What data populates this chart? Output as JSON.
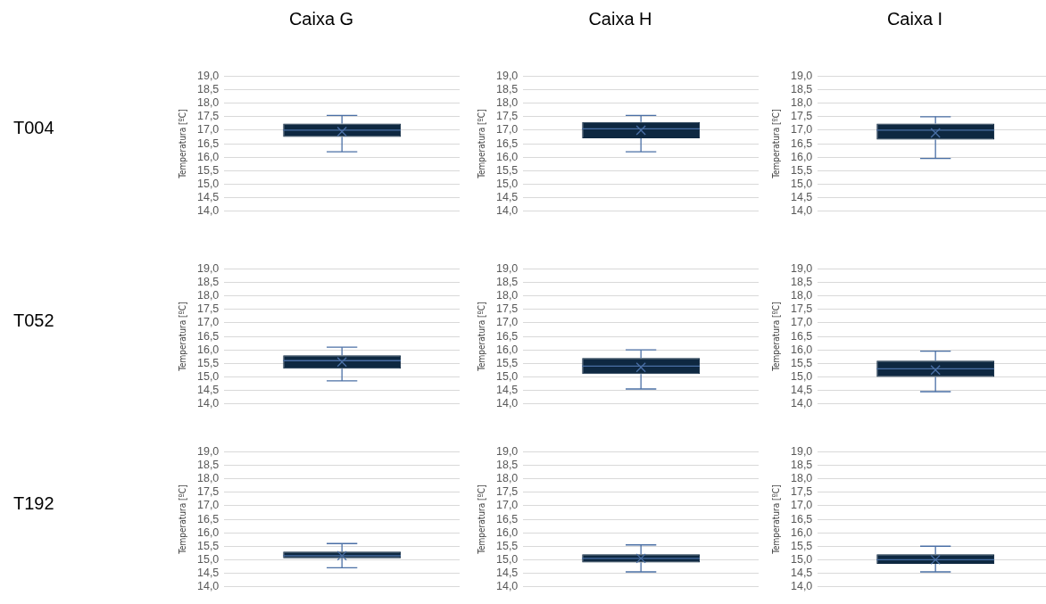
{
  "chart_data": [
    {
      "type": "box",
      "title": "Caixa G",
      "annotations": [
        "T004"
      ],
      "ylabel": "Temperatura [ºC]",
      "categories": [
        null
      ],
      "color": "#0e2841",
      "grid": "y",
      "legend": false,
      "ylim": [
        14,
        19
      ],
      "yticks": [
        {
          "value": 14,
          "label": "14,0"
        },
        {
          "value": 14.5,
          "label": "14,5"
        },
        {
          "value": 15,
          "label": "15,0"
        },
        {
          "value": 15.5,
          "label": "15,5"
        },
        {
          "value": 16,
          "label": "16,0"
        },
        {
          "value": 16.5,
          "label": "16,5"
        },
        {
          "value": 17,
          "label": "17,0"
        },
        {
          "value": 17.5,
          "label": "17,5"
        },
        {
          "value": 18,
          "label": "18,0"
        },
        {
          "value": 18.5,
          "label": "18,5"
        },
        {
          "value": 19,
          "label": "19,0"
        }
      ],
      "boxes": [
        {
          "low": 16.2,
          "q1": 16.75,
          "median": 17.0,
          "q3": 17.25,
          "high": 17.55,
          "mean": 16.95
        }
      ]
    },
    {
      "type": "box",
      "title": "Caixa H",
      "ylabel": "Temperatura [ºC]",
      "categories": [
        null
      ],
      "color": "#0e2841",
      "grid": "y",
      "legend": false,
      "ylim": [
        14,
        19
      ],
      "yticks": [
        {
          "value": 14,
          "label": "14,0"
        },
        {
          "value": 14.5,
          "label": "14,5"
        },
        {
          "value": 15,
          "label": "15,0"
        },
        {
          "value": 15.5,
          "label": "15,5"
        },
        {
          "value": 16,
          "label": "16,0"
        },
        {
          "value": 16.5,
          "label": "16,5"
        },
        {
          "value": 17,
          "label": "17,0"
        },
        {
          "value": 17.5,
          "label": "17,5"
        },
        {
          "value": 18,
          "label": "18,0"
        },
        {
          "value": 18.5,
          "label": "18,5"
        },
        {
          "value": 19,
          "label": "19,0"
        }
      ],
      "boxes": [
        {
          "low": 16.2,
          "q1": 16.7,
          "median": 17.05,
          "q3": 17.3,
          "high": 17.55,
          "mean": 17.0
        }
      ]
    },
    {
      "type": "box",
      "title": "Caixa I",
      "ylabel": "Temperatura [ºC]",
      "categories": [
        null
      ],
      "color": "#0e2841",
      "grid": "y",
      "legend": false,
      "ylim": [
        14,
        19
      ],
      "yticks": [
        {
          "value": 14,
          "label": "14,0"
        },
        {
          "value": 14.5,
          "label": "14,5"
        },
        {
          "value": 15,
          "label": "15,0"
        },
        {
          "value": 15.5,
          "label": "15,5"
        },
        {
          "value": 16,
          "label": "16,0"
        },
        {
          "value": 16.5,
          "label": "16,5"
        },
        {
          "value": 17,
          "label": "17,0"
        },
        {
          "value": 17.5,
          "label": "17,5"
        },
        {
          "value": 18,
          "label": "18,0"
        },
        {
          "value": 18.5,
          "label": "18,5"
        },
        {
          "value": 19,
          "label": "19,0"
        }
      ],
      "boxes": [
        {
          "low": 15.95,
          "q1": 16.65,
          "median": 17.0,
          "q3": 17.25,
          "high": 17.5,
          "mean": 16.9
        }
      ]
    },
    {
      "type": "box",
      "annotations": [
        "T052"
      ],
      "ylabel": "Temperatura [ºC]",
      "categories": [
        null
      ],
      "color": "#0e2841",
      "grid": "y",
      "legend": false,
      "ylim": [
        14,
        19
      ],
      "yticks": [
        {
          "value": 14,
          "label": "14,0"
        },
        {
          "value": 14.5,
          "label": "14,5"
        },
        {
          "value": 15,
          "label": "15,0"
        },
        {
          "value": 15.5,
          "label": "15,5"
        },
        {
          "value": 16,
          "label": "16,0"
        },
        {
          "value": 16.5,
          "label": "16,5"
        },
        {
          "value": 17,
          "label": "17,0"
        },
        {
          "value": 17.5,
          "label": "17,5"
        },
        {
          "value": 18,
          "label": "18,0"
        },
        {
          "value": 18.5,
          "label": "18,5"
        },
        {
          "value": 19,
          "label": "19,0"
        }
      ],
      "boxes": [
        {
          "low": 14.85,
          "q1": 15.3,
          "median": 15.6,
          "q3": 15.8,
          "high": 16.1,
          "mean": 15.55
        }
      ]
    },
    {
      "type": "box",
      "ylabel": "Temperatura [ºC]",
      "categories": [
        null
      ],
      "color": "#0e2841",
      "grid": "y",
      "legend": false,
      "ylim": [
        14,
        19
      ],
      "yticks": [
        {
          "value": 14,
          "label": "14,0"
        },
        {
          "value": 14.5,
          "label": "14,5"
        },
        {
          "value": 15,
          "label": "15,0"
        },
        {
          "value": 15.5,
          "label": "15,5"
        },
        {
          "value": 16,
          "label": "16,0"
        },
        {
          "value": 16.5,
          "label": "16,5"
        },
        {
          "value": 17,
          "label": "17,0"
        },
        {
          "value": 17.5,
          "label": "17,5"
        },
        {
          "value": 18,
          "label": "18,0"
        },
        {
          "value": 18.5,
          "label": "18,5"
        },
        {
          "value": 19,
          "label": "19,0"
        }
      ],
      "boxes": [
        {
          "low": 14.55,
          "q1": 15.1,
          "median": 15.4,
          "q3": 15.7,
          "high": 16.0,
          "mean": 15.35
        }
      ]
    },
    {
      "type": "box",
      "ylabel": "Temperatura [ºC]",
      "categories": [
        null
      ],
      "color": "#0e2841",
      "grid": "y",
      "legend": false,
      "ylim": [
        14,
        19
      ],
      "yticks": [
        {
          "value": 14,
          "label": "14,0"
        },
        {
          "value": 14.5,
          "label": "14,5"
        },
        {
          "value": 15,
          "label": "15,0"
        },
        {
          "value": 15.5,
          "label": "15,5"
        },
        {
          "value": 16,
          "label": "16,0"
        },
        {
          "value": 16.5,
          "label": "16,5"
        },
        {
          "value": 17,
          "label": "17,0"
        },
        {
          "value": 17.5,
          "label": "17,5"
        },
        {
          "value": 18,
          "label": "18,0"
        },
        {
          "value": 18.5,
          "label": "18,5"
        },
        {
          "value": 19,
          "label": "19,0"
        }
      ],
      "boxes": [
        {
          "low": 14.45,
          "q1": 15.0,
          "median": 15.3,
          "q3": 15.6,
          "high": 15.95,
          "mean": 15.25
        }
      ]
    },
    {
      "type": "box",
      "annotations": [
        "T192"
      ],
      "ylabel": "Temperatura [ºC]",
      "categories": [
        null
      ],
      "color": "#0e2841",
      "grid": "y",
      "legend": false,
      "ylim": [
        14,
        19
      ],
      "yticks": [
        {
          "value": 14,
          "label": "14,0"
        },
        {
          "value": 14.5,
          "label": "14,5"
        },
        {
          "value": 15,
          "label": "15,0"
        },
        {
          "value": 15.5,
          "label": "15,5"
        },
        {
          "value": 16,
          "label": "16,0"
        },
        {
          "value": 16.5,
          "label": "16,5"
        },
        {
          "value": 17,
          "label": "17,0"
        },
        {
          "value": 17.5,
          "label": "17,5"
        },
        {
          "value": 18,
          "label": "18,0"
        },
        {
          "value": 18.5,
          "label": "18,5"
        },
        {
          "value": 19,
          "label": "19,0"
        }
      ],
      "boxes": [
        {
          "low": 14.7,
          "q1": 15.05,
          "median": 15.15,
          "q3": 15.3,
          "high": 15.6,
          "mean": 15.15
        }
      ]
    },
    {
      "type": "box",
      "ylabel": "Temperatura [ºC]",
      "categories": [
        null
      ],
      "color": "#0e2841",
      "grid": "y",
      "legend": false,
      "ylim": [
        14,
        19
      ],
      "yticks": [
        {
          "value": 14,
          "label": "14,0"
        },
        {
          "value": 14.5,
          "label": "14,5"
        },
        {
          "value": 15,
          "label": "15,0"
        },
        {
          "value": 15.5,
          "label": "15,5"
        },
        {
          "value": 16,
          "label": "16,0"
        },
        {
          "value": 16.5,
          "label": "16,5"
        },
        {
          "value": 17,
          "label": "17,0"
        },
        {
          "value": 17.5,
          "label": "17,5"
        },
        {
          "value": 18,
          "label": "18,0"
        },
        {
          "value": 18.5,
          "label": "18,5"
        },
        {
          "value": 19,
          "label": "19,0"
        }
      ],
      "boxes": [
        {
          "low": 14.55,
          "q1": 14.9,
          "median": 15.05,
          "q3": 15.2,
          "high": 15.55,
          "mean": 15.05
        }
      ]
    },
    {
      "type": "box",
      "ylabel": "Temperatura [ºC]",
      "categories": [
        null
      ],
      "color": "#0e2841",
      "grid": "y",
      "legend": false,
      "ylim": [
        14,
        19
      ],
      "yticks": [
        {
          "value": 14,
          "label": "14,0"
        },
        {
          "value": 14.5,
          "label": "14,5"
        },
        {
          "value": 15,
          "label": "15,0"
        },
        {
          "value": 15.5,
          "label": "15,5"
        },
        {
          "value": 16,
          "label": "16,0"
        },
        {
          "value": 16.5,
          "label": "16,5"
        },
        {
          "value": 17,
          "label": "17,0"
        },
        {
          "value": 17.5,
          "label": "17,5"
        },
        {
          "value": 18,
          "label": "18,0"
        },
        {
          "value": 18.5,
          "label": "18,5"
        },
        {
          "value": 19,
          "label": "19,0"
        }
      ],
      "boxes": [
        {
          "low": 14.55,
          "q1": 14.85,
          "median": 15.0,
          "q3": 15.2,
          "high": 15.5,
          "mean": 15.0
        }
      ]
    }
  ]
}
